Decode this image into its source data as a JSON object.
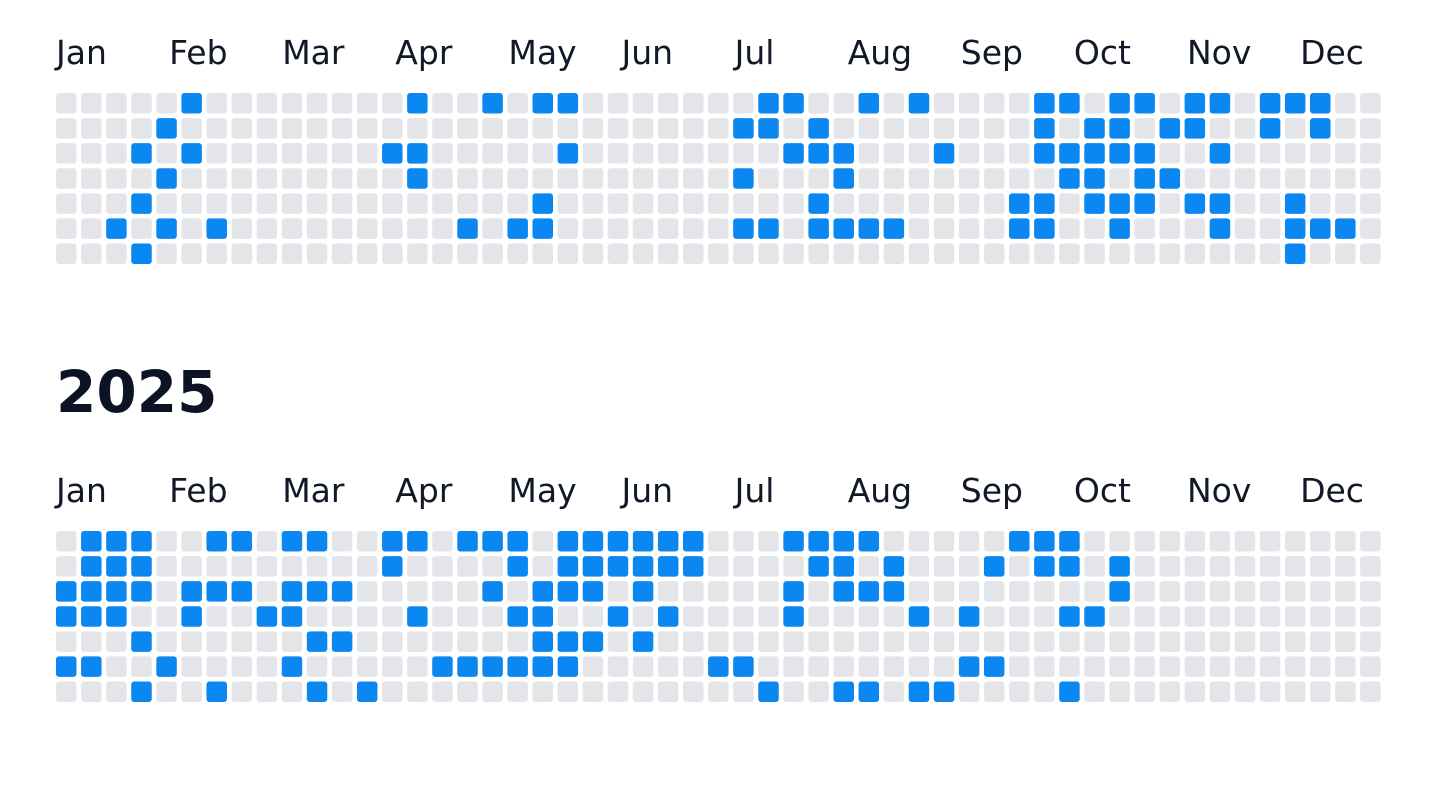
{
  "active_color": "#0b87f2",
  "empty_color": "#e4e5e9",
  "years": [
    {
      "months": [
        "Jan",
        "Feb",
        "Mar",
        "Apr",
        "May",
        "Jun",
        "Jul",
        "Aug",
        "Sep",
        "Oct",
        "Nov",
        "Dec"
      ],
      "cells": [
        [
          0,
          0,
          0,
          0,
          0,
          1,
          0,
          0,
          0,
          0,
          0,
          0,
          0,
          0,
          1,
          0,
          0,
          1,
          0,
          1,
          1,
          0,
          0,
          0,
          0,
          0,
          0,
          0,
          1,
          1,
          0,
          0,
          1,
          0,
          1,
          0,
          0,
          0,
          0,
          1,
          1,
          0,
          1,
          1,
          0,
          1,
          1,
          0,
          1,
          1,
          1,
          0,
          0
        ],
        [
          0,
          0,
          0,
          0,
          1,
          0,
          0,
          0,
          0,
          0,
          0,
          0,
          0,
          0,
          0,
          0,
          0,
          0,
          0,
          0,
          0,
          0,
          0,
          0,
          0,
          0,
          0,
          1,
          1,
          0,
          1,
          0,
          0,
          0,
          0,
          0,
          0,
          0,
          0,
          1,
          0,
          1,
          1,
          0,
          1,
          1,
          0,
          0,
          1,
          0,
          1,
          0,
          0
        ],
        [
          0,
          0,
          0,
          1,
          0,
          1,
          0,
          0,
          0,
          0,
          0,
          0,
          0,
          1,
          1,
          0,
          0,
          0,
          0,
          0,
          1,
          0,
          0,
          0,
          0,
          0,
          0,
          0,
          0,
          1,
          1,
          1,
          0,
          0,
          0,
          1,
          0,
          0,
          0,
          1,
          1,
          1,
          1,
          1,
          0,
          0,
          1,
          0,
          0,
          0,
          0,
          0,
          0
        ],
        [
          0,
          0,
          0,
          0,
          1,
          0,
          0,
          0,
          0,
          0,
          0,
          0,
          0,
          0,
          1,
          0,
          0,
          0,
          0,
          0,
          0,
          0,
          0,
          0,
          0,
          0,
          0,
          1,
          0,
          0,
          0,
          1,
          0,
          0,
          0,
          0,
          0,
          0,
          0,
          0,
          1,
          1,
          0,
          1,
          1,
          0,
          0,
          0,
          0,
          0,
          0,
          0,
          0
        ],
        [
          0,
          0,
          0,
          1,
          0,
          0,
          0,
          0,
          0,
          0,
          0,
          0,
          0,
          0,
          0,
          0,
          0,
          0,
          0,
          1,
          0,
          0,
          0,
          0,
          0,
          0,
          0,
          0,
          0,
          0,
          1,
          0,
          0,
          0,
          0,
          0,
          0,
          0,
          1,
          1,
          0,
          1,
          1,
          1,
          0,
          1,
          1,
          0,
          0,
          1,
          0,
          0,
          0
        ],
        [
          0,
          0,
          1,
          0,
          1,
          0,
          1,
          0,
          0,
          0,
          0,
          0,
          0,
          0,
          0,
          0,
          1,
          0,
          1,
          1,
          0,
          0,
          0,
          0,
          0,
          0,
          0,
          1,
          1,
          0,
          1,
          1,
          1,
          1,
          0,
          0,
          0,
          0,
          1,
          1,
          0,
          0,
          1,
          0,
          0,
          0,
          1,
          0,
          0,
          1,
          1,
          1,
          0
        ],
        [
          0,
          0,
          0,
          1,
          0,
          0,
          0,
          0,
          0,
          0,
          0,
          0,
          0,
          0,
          0,
          0,
          0,
          0,
          0,
          0,
          0,
          0,
          0,
          0,
          0,
          0,
          0,
          0,
          0,
          0,
          0,
          0,
          0,
          0,
          0,
          0,
          0,
          0,
          0,
          0,
          0,
          0,
          0,
          0,
          0,
          0,
          0,
          0,
          0,
          1,
          0,
          0,
          0
        ]
      ]
    },
    {
      "title": "2025",
      "months": [
        "Jan",
        "Feb",
        "Mar",
        "Apr",
        "May",
        "Jun",
        "Jul",
        "Aug",
        "Sep",
        "Oct",
        "Nov",
        "Dec"
      ],
      "cells": [
        [
          0,
          1,
          1,
          1,
          0,
          0,
          1,
          1,
          0,
          1,
          1,
          0,
          0,
          1,
          1,
          0,
          1,
          1,
          1,
          0,
          1,
          1,
          1,
          1,
          1,
          1,
          0,
          0,
          0,
          1,
          1,
          1,
          1,
          0,
          0,
          0,
          0,
          0,
          1,
          1,
          1,
          0,
          0,
          0,
          0,
          0,
          0,
          0,
          0,
          0,
          0,
          0,
          0
        ],
        [
          0,
          1,
          1,
          1,
          0,
          0,
          0,
          0,
          0,
          0,
          0,
          0,
          0,
          1,
          0,
          0,
          0,
          0,
          1,
          0,
          1,
          1,
          1,
          1,
          1,
          1,
          0,
          0,
          0,
          0,
          1,
          1,
          0,
          1,
          0,
          0,
          0,
          1,
          0,
          1,
          1,
          0,
          1,
          0,
          0,
          0,
          0,
          0,
          0,
          0,
          0,
          0,
          0
        ],
        [
          1,
          1,
          1,
          1,
          0,
          1,
          1,
          1,
          0,
          1,
          1,
          1,
          0,
          0,
          0,
          0,
          0,
          1,
          0,
          1,
          1,
          1,
          0,
          1,
          0,
          0,
          0,
          0,
          0,
          1,
          0,
          1,
          1,
          1,
          0,
          0,
          0,
          0,
          0,
          0,
          0,
          0,
          1,
          0,
          0,
          0,
          0,
          0,
          0,
          0,
          0,
          0,
          0
        ],
        [
          1,
          1,
          1,
          0,
          0,
          1,
          0,
          0,
          1,
          1,
          0,
          0,
          0,
          0,
          1,
          0,
          0,
          0,
          1,
          1,
          0,
          0,
          1,
          0,
          1,
          0,
          0,
          0,
          0,
          1,
          0,
          0,
          0,
          0,
          1,
          0,
          1,
          0,
          0,
          0,
          1,
          1,
          0,
          0,
          0,
          0,
          0,
          0,
          0,
          0,
          0,
          0,
          0
        ],
        [
          0,
          0,
          0,
          1,
          0,
          0,
          0,
          0,
          0,
          0,
          1,
          1,
          0,
          0,
          0,
          0,
          0,
          0,
          0,
          1,
          1,
          1,
          0,
          1,
          0,
          0,
          0,
          0,
          0,
          0,
          0,
          0,
          0,
          0,
          0,
          0,
          0,
          0,
          0,
          0,
          0,
          0,
          0,
          0,
          0,
          0,
          0,
          0,
          0,
          0,
          0,
          0,
          0
        ],
        [
          1,
          1,
          0,
          0,
          1,
          0,
          0,
          0,
          0,
          1,
          0,
          0,
          0,
          0,
          0,
          1,
          1,
          1,
          1,
          1,
          1,
          0,
          0,
          0,
          0,
          0,
          1,
          1,
          0,
          0,
          0,
          0,
          0,
          0,
          0,
          0,
          1,
          1,
          0,
          0,
          0,
          0,
          0,
          0,
          0,
          0,
          0,
          0,
          0,
          0,
          0,
          0,
          0
        ],
        [
          0,
          0,
          0,
          1,
          0,
          0,
          1,
          0,
          0,
          0,
          1,
          0,
          1,
          0,
          0,
          0,
          0,
          0,
          0,
          0,
          0,
          0,
          0,
          0,
          0,
          0,
          0,
          0,
          1,
          0,
          0,
          1,
          1,
          0,
          1,
          1,
          0,
          0,
          0,
          0,
          1,
          0,
          0,
          0,
          0,
          0,
          0,
          0,
          0,
          0,
          0,
          0,
          0
        ]
      ]
    }
  ]
}
